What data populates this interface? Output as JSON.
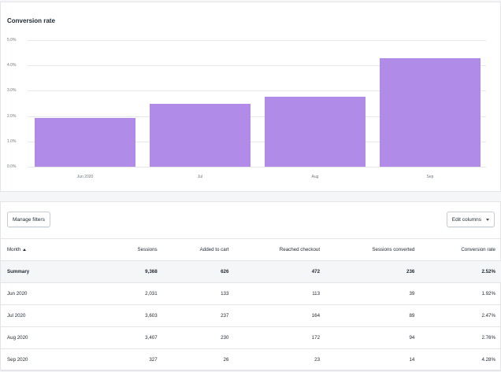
{
  "chart_data": {
    "type": "bar",
    "title": "Conversion rate",
    "categories": [
      "Jun 2020",
      "Jul",
      "Aug",
      "Sep"
    ],
    "values": [
      1.92,
      2.47,
      2.76,
      4.28
    ],
    "yticks": [
      "0.0%",
      "1.0%",
      "2.0%",
      "3.0%",
      "4.0%",
      "5.0%"
    ],
    "ylim": [
      0,
      5
    ],
    "grid": true,
    "bar_color": "#b18be8"
  },
  "toolbar": {
    "manage_filters": "Manage filters",
    "edit_columns": "Edit columns"
  },
  "table": {
    "headers": [
      "Month",
      "Sessions",
      "Added to cart",
      "Reached checkout",
      "Sessions converted",
      "Conversion rate"
    ],
    "summary": [
      "Summary",
      "9,368",
      "626",
      "472",
      "236",
      "2.52%"
    ],
    "rows": [
      [
        "Jun 2020",
        "2,031",
        "133",
        "113",
        "39",
        "1.92%"
      ],
      [
        "Jul 2020",
        "3,603",
        "237",
        "164",
        "89",
        "2.47%"
      ],
      [
        "Aug 2020",
        "3,407",
        "230",
        "172",
        "94",
        "2.76%"
      ],
      [
        "Sep 2020",
        "327",
        "26",
        "23",
        "14",
        "4.28%"
      ]
    ]
  }
}
